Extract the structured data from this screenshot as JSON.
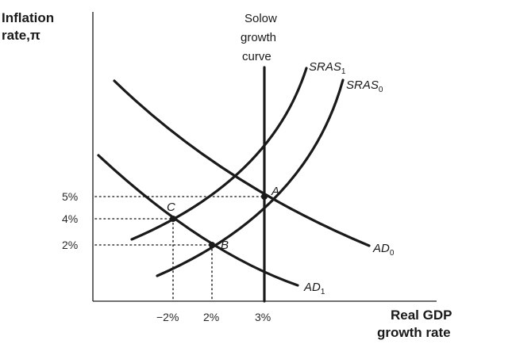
{
  "y_axis_title": [
    "Inflation",
    "rate,π"
  ],
  "x_axis_title": [
    "Real GDP",
    "growth rate"
  ],
  "y_ticks": [
    "5%",
    "4%",
    "2%"
  ],
  "x_ticks": [
    "−2%",
    "2%",
    "3%"
  ],
  "solow_label": [
    "Solow",
    "growth",
    "curve"
  ],
  "curves": {
    "sras1": {
      "base": "SRAS",
      "sub": "1"
    },
    "sras0": {
      "base": "SRAS",
      "sub": "0"
    },
    "ad0": {
      "base": "AD",
      "sub": "0"
    },
    "ad1": {
      "base": "AD",
      "sub": "1"
    }
  },
  "points": {
    "a": "A",
    "b": "B",
    "c": "C"
  }
}
